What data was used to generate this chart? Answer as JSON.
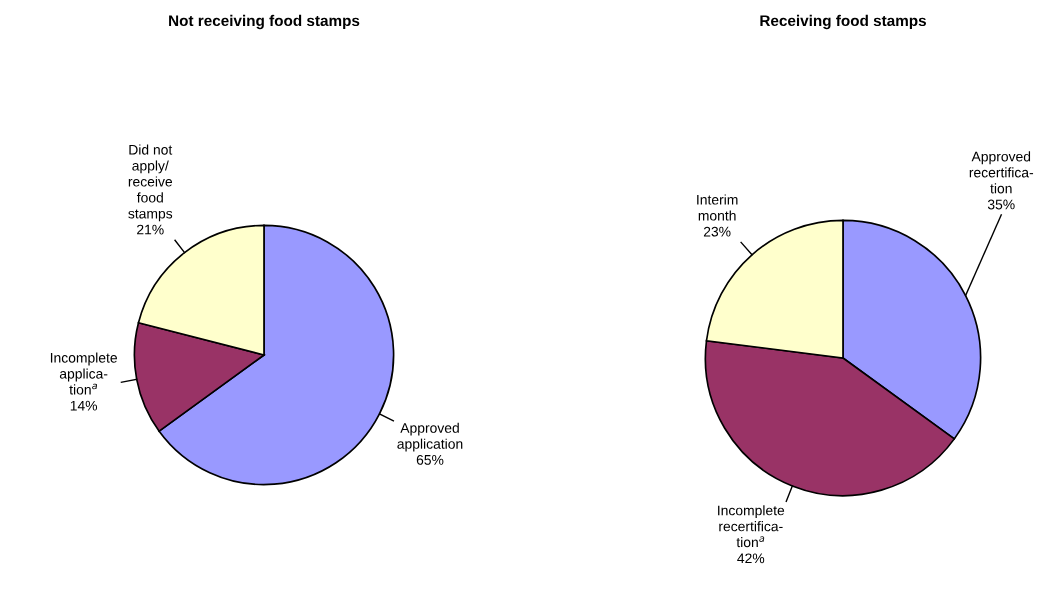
{
  "chart_data": [
    {
      "type": "pie",
      "title": "Not receiving food stamps",
      "categories": [
        "Approved\napplication",
        "Incomplete\napplica-\ntion$^{a}$",
        "Did not\napply/\nreceive\nfood\nstamps"
      ],
      "values": [
        65,
        14,
        21
      ],
      "value_labels": [
        "65%",
        "14%",
        "21%"
      ],
      "colors": [
        "#9999ff",
        "#993366",
        "#ffffcc"
      ]
    },
    {
      "type": "pie",
      "title": "Receiving food stamps",
      "categories": [
        "Approved\nrecertifica-\ntion",
        "Incomplete\nrecertifica-\ntion$^{a}$",
        "Interim\nmonth"
      ],
      "values": [
        35,
        42,
        23
      ],
      "value_labels": [
        "35%",
        "42%",
        "23%"
      ],
      "colors": [
        "#9999ff",
        "#993366",
        "#ffffcc"
      ]
    }
  ]
}
